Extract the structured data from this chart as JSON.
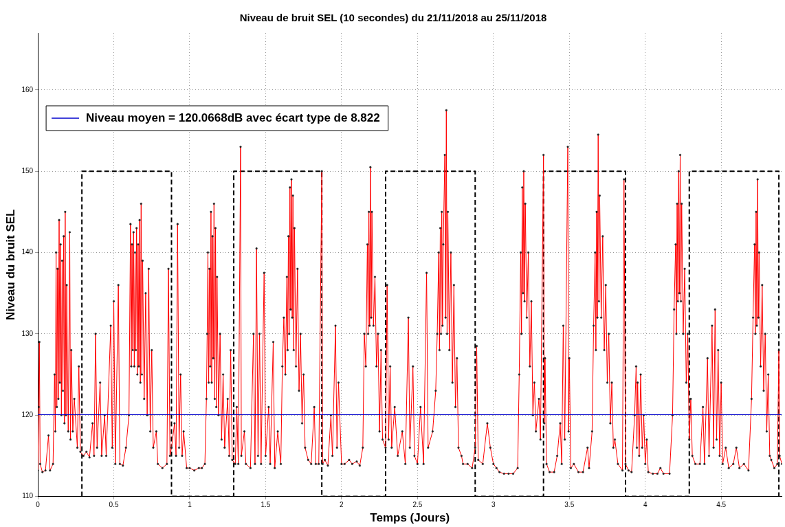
{
  "chart_data": {
    "type": "line",
    "title": "Niveau de bruit SEL (10 secondes) du 21/11/2018 au 25/11/2018",
    "xlabel": "Temps (Jours)",
    "ylabel": "Niveau du bruit SEL",
    "xlim": [
      0,
      4.9
    ],
    "xticks": [
      0,
      0.5,
      1,
      1.5,
      2,
      2.5,
      3,
      3.5,
      4,
      4.5
    ],
    "ylim": [
      110,
      167
    ],
    "yticks": [
      110,
      120,
      130,
      140,
      150,
      160
    ],
    "grid": true,
    "legend": "top left",
    "series": [
      {
        "color": "#ff0000",
        "marker": "circle",
        "x": [
          0,
          0.005,
          0.01,
          0.015,
          0.03,
          0.05,
          0.07,
          0.08,
          0.1,
          0.11,
          0.115,
          0.12,
          0.125,
          0.13,
          0.135,
          0.14,
          0.145,
          0.15,
          0.155,
          0.16,
          0.165,
          0.17,
          0.175,
          0.18,
          0.185,
          0.19,
          0.2,
          0.21,
          0.215,
          0.22,
          0.23,
          0.24,
          0.26,
          0.27,
          0.28,
          0.3,
          0.32,
          0.34,
          0.36,
          0.37,
          0.38,
          0.39,
          0.41,
          0.42,
          0.44,
          0.45,
          0.48,
          0.49,
          0.5,
          0.51,
          0.53,
          0.54,
          0.56,
          0.58,
          0.6,
          0.61,
          0.615,
          0.62,
          0.625,
          0.63,
          0.635,
          0.64,
          0.645,
          0.65,
          0.655,
          0.66,
          0.665,
          0.67,
          0.675,
          0.68,
          0.685,
          0.69,
          0.7,
          0.71,
          0.72,
          0.73,
          0.74,
          0.75,
          0.76,
          0.78,
          0.79,
          0.82,
          0.85,
          0.86,
          0.87,
          0.88,
          0.9,
          0.91,
          0.92,
          0.93,
          0.94,
          0.95,
          0.96,
          0.98,
          1.0,
          1.03,
          1.06,
          1.08,
          1.1,
          1.11,
          1.115,
          1.12,
          1.125,
          1.13,
          1.135,
          1.14,
          1.145,
          1.15,
          1.155,
          1.16,
          1.165,
          1.17,
          1.175,
          1.18,
          1.19,
          1.2,
          1.21,
          1.22,
          1.23,
          1.25,
          1.26,
          1.27,
          1.28,
          1.3,
          1.31,
          1.32,
          1.335,
          1.34,
          1.36,
          1.37,
          1.4,
          1.42,
          1.43,
          1.44,
          1.45,
          1.46,
          1.47,
          1.49,
          1.5,
          1.52,
          1.53,
          1.55,
          1.56,
          1.58,
          1.6,
          1.61,
          1.62,
          1.63,
          1.64,
          1.645,
          1.65,
          1.655,
          1.66,
          1.665,
          1.67,
          1.675,
          1.68,
          1.685,
          1.69,
          1.7,
          1.71,
          1.72,
          1.73,
          1.74,
          1.75,
          1.76,
          1.78,
          1.8,
          1.82,
          1.83,
          1.85,
          1.87,
          1.875,
          1.89,
          1.91,
          1.93,
          1.94,
          1.96,
          1.97,
          1.98,
          2.0,
          2.02,
          2.05,
          2.07,
          2.1,
          2.12,
          2.14,
          2.15,
          2.16,
          2.17,
          2.175,
          2.18,
          2.185,
          2.19,
          2.195,
          2.2,
          2.21,
          2.22,
          2.23,
          2.24,
          2.25,
          2.26,
          2.27,
          2.29,
          2.3,
          2.31,
          2.32,
          2.33,
          2.35,
          2.37,
          2.4,
          2.42,
          2.44,
          2.45,
          2.47,
          2.48,
          2.5,
          2.52,
          2.54,
          2.56,
          2.57,
          2.6,
          2.62,
          2.63,
          2.64,
          2.645,
          2.65,
          2.655,
          2.66,
          2.665,
          2.67,
          2.68,
          2.685,
          2.69,
          2.695,
          2.7,
          2.71,
          2.72,
          2.73,
          2.74,
          2.75,
          2.76,
          2.77,
          2.79,
          2.8,
          2.83,
          2.86,
          2.88,
          2.89,
          2.9,
          2.93,
          2.96,
          2.98,
          3.0,
          3.02,
          3.04,
          3.07,
          3.1,
          3.13,
          3.16,
          3.17,
          3.18,
          3.185,
          3.19,
          3.195,
          3.2,
          3.205,
          3.21,
          3.22,
          3.23,
          3.24,
          3.25,
          3.26,
          3.27,
          3.28,
          3.3,
          3.31,
          3.33,
          3.335,
          3.34,
          3.35,
          3.37,
          3.4,
          3.42,
          3.44,
          3.45,
          3.46,
          3.47,
          3.49,
          3.495,
          3.5,
          3.51,
          3.53,
          3.56,
          3.59,
          3.62,
          3.63,
          3.65,
          3.66,
          3.67,
          3.675,
          3.68,
          3.685,
          3.69,
          3.695,
          3.7,
          3.71,
          3.72,
          3.73,
          3.74,
          3.75,
          3.76,
          3.77,
          3.78,
          3.79,
          3.8,
          3.82,
          3.85,
          3.86,
          3.87,
          3.89,
          3.91,
          3.93,
          3.94,
          3.945,
          3.95,
          3.96,
          3.97,
          3.98,
          3.99,
          4.0,
          4.01,
          4.02,
          4.05,
          4.08,
          4.1,
          4.12,
          4.16,
          4.18,
          4.19,
          4.2,
          4.205,
          4.21,
          4.215,
          4.22,
          4.225,
          4.23,
          4.235,
          4.24,
          4.25,
          4.26,
          4.27,
          4.28,
          4.29,
          4.3,
          4.31,
          4.33,
          4.36,
          4.38,
          4.39,
          4.41,
          4.42,
          4.44,
          4.45,
          4.46,
          4.47,
          4.48,
          4.49,
          4.5,
          4.51,
          4.53,
          4.55,
          4.58,
          4.6,
          4.62,
          4.65,
          4.68,
          4.7,
          4.71,
          4.72,
          4.725,
          4.73,
          4.735,
          4.74,
          4.745,
          4.75,
          4.76,
          4.77,
          4.78,
          4.79,
          4.8,
          4.81,
          4.82,
          4.83,
          4.85,
          4.87,
          4.88,
          4.885,
          4.9
        ],
        "values": [
          113.2,
          121,
          129,
          114,
          113,
          113.2,
          117.5,
          113.2,
          114,
          125,
          118,
          140,
          121,
          138,
          122,
          144,
          124,
          141,
          120,
          139,
          123,
          142,
          119,
          145,
          120,
          136,
          118,
          142.5,
          117,
          128,
          118,
          122,
          116,
          126,
          115.5,
          115,
          115.5,
          114.8,
          119,
          115,
          130,
          116,
          124,
          115,
          120,
          115,
          131,
          116,
          134,
          114,
          136,
          114,
          113.8,
          116,
          120,
          143.5,
          126,
          141,
          128,
          142.5,
          126,
          140,
          128,
          143,
          125,
          141,
          126,
          144,
          124,
          146,
          125,
          139,
          122,
          135,
          120,
          138,
          118,
          128,
          116,
          118,
          114,
          113.5,
          114,
          138,
          115,
          116,
          119,
          115,
          143.5,
          116,
          125,
          115,
          118,
          113.5,
          113.5,
          113.2,
          113.5,
          113.5,
          114,
          122,
          130,
          140,
          124,
          138,
          126,
          145,
          124,
          142,
          127,
          146,
          122,
          143,
          121,
          137,
          120,
          130,
          117,
          125,
          116,
          122,
          115,
          128,
          114.5,
          114,
          121,
          114,
          153,
          115,
          118,
          114,
          113.5,
          130,
          114,
          140.5,
          115,
          130,
          114,
          137.5,
          115,
          121,
          114,
          129,
          113.5,
          118,
          114,
          126,
          132,
          125,
          137,
          128,
          142,
          130,
          148,
          133,
          149,
          132,
          147,
          128,
          143,
          126,
          138,
          123,
          130,
          119,
          125,
          116,
          114.5,
          114,
          121,
          114,
          114,
          150,
          114,
          114.5,
          113.8,
          120,
          115,
          131,
          116,
          124,
          114,
          114,
          114.5,
          114,
          114.3,
          113.8,
          116,
          130,
          126,
          141,
          130,
          145,
          131,
          150.5,
          132,
          145,
          131,
          137,
          126,
          130,
          118,
          128,
          117,
          116,
          136,
          117,
          126,
          116,
          121,
          115,
          118,
          114,
          132,
          116,
          126,
          115,
          114,
          121,
          114,
          137.5,
          116,
          118,
          123,
          130,
          140,
          128,
          143,
          130,
          145,
          131,
          141,
          152,
          132,
          157.5,
          130,
          145,
          128,
          140,
          124,
          136,
          121,
          127,
          116,
          115,
          114,
          114,
          113.5,
          116,
          128.5,
          114.5,
          114,
          119,
          116,
          114,
          113.5,
          113,
          112.8,
          112.8,
          112.8,
          113.5,
          125,
          140,
          130,
          148,
          135,
          150,
          134,
          146,
          132,
          140,
          126,
          134,
          120,
          124,
          118,
          122,
          117,
          152,
          119,
          127,
          114,
          113,
          113,
          115,
          119,
          114,
          131,
          117,
          153,
          118,
          127,
          113.5,
          114,
          113,
          113,
          116,
          113.5,
          118,
          131,
          140,
          128,
          145,
          132,
          154.5,
          134,
          147,
          132,
          142,
          128,
          136,
          124,
          130,
          119,
          124,
          116,
          117,
          114,
          113.2,
          149,
          114,
          113.2,
          113,
          120,
          126,
          116,
          124,
          115,
          125,
          116,
          120,
          114,
          117,
          113,
          112.8,
          112.8,
          113.5,
          112.8,
          112.8,
          120,
          133,
          141,
          130,
          146,
          134,
          150,
          135,
          152,
          134,
          146,
          130,
          138,
          124,
          130,
          117,
          122,
          115,
          114,
          114,
          121,
          114,
          127,
          115,
          131,
          116,
          133,
          117,
          128,
          115,
          124,
          114,
          116,
          113.5,
          114,
          116,
          113.5,
          114,
          113.2,
          122,
          132,
          141,
          130,
          145,
          131,
          149,
          132,
          140,
          126,
          136,
          123,
          130,
          118,
          125,
          115,
          114.5,
          113.5,
          114,
          128,
          115,
          114
        ]
      },
      {
        "color": "#000000",
        "line_style": "dashed",
        "x": [
          0.29,
          0.29,
          0.88,
          0.88,
          1.29,
          1.29,
          1.87,
          1.87,
          2.29,
          2.29,
          2.88,
          2.88,
          3.33,
          3.33,
          3.87,
          3.87,
          4.29,
          4.29,
          4.88,
          4.88
        ],
        "values": [
          110,
          150,
          150,
          110,
          110,
          150,
          150,
          110,
          110,
          150,
          150,
          110,
          110,
          150,
          150,
          110,
          110,
          150,
          150,
          110
        ]
      },
      {
        "name": "Niveau moyen = 120.0668dB avec écart type de 8.822",
        "color": "#0000cc",
        "x": [
          0,
          4.9
        ],
        "values": [
          120.0668,
          120.0668
        ]
      }
    ]
  }
}
